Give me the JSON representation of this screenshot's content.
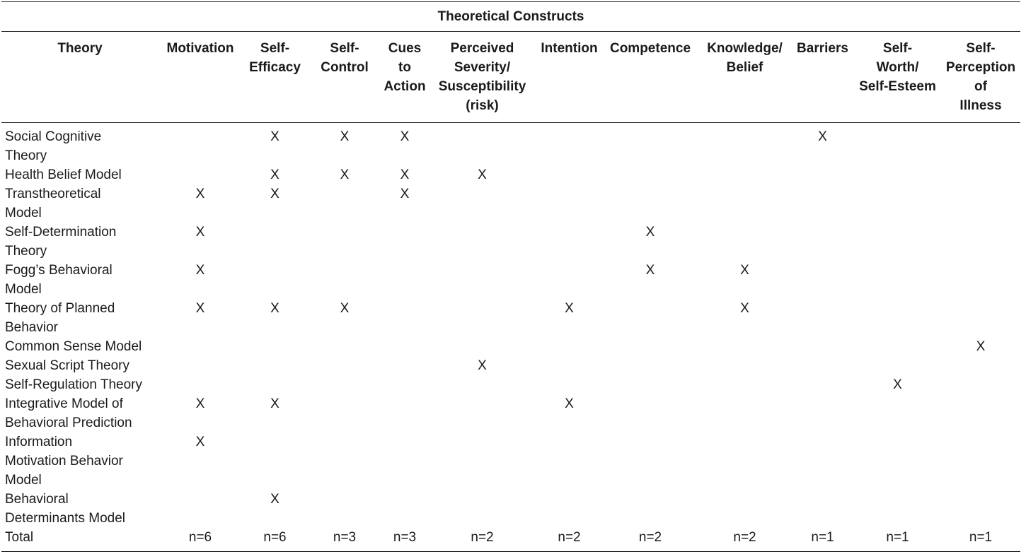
{
  "table": {
    "group_header": "Theoretical Constructs",
    "columns": [
      "Theory",
      "Motivation",
      "Self-\nEfficacy",
      "Self-\nControl",
      "Cues\nto\nAction",
      "Perceived\nSeverity/\nSusceptibility\n(risk)",
      "Intention",
      "Competence",
      "Knowledge/\nBelief",
      "Barriers",
      "Self-\nWorth/\nSelf-Esteem",
      "Self-\nPerception\nof\nIllness"
    ],
    "rows": [
      {
        "name": "Social Cognitive\nTheory",
        "marks": [
          "",
          "X",
          "X",
          "X",
          "",
          "",
          "",
          "",
          "X",
          "",
          ""
        ]
      },
      {
        "name": "Health Belief Model",
        "marks": [
          "",
          "X",
          "X",
          "X",
          "X",
          "",
          "",
          "",
          "",
          "",
          ""
        ]
      },
      {
        "name": "Transtheoretical\nModel",
        "marks": [
          "X",
          "X",
          "",
          "X",
          "",
          "",
          "",
          "",
          "",
          "",
          ""
        ]
      },
      {
        "name": "Self-Determination\nTheory",
        "marks": [
          "X",
          "",
          "",
          "",
          "",
          "",
          "X",
          "",
          "",
          "",
          ""
        ]
      },
      {
        "name": "Fogg’s Behavioral\nModel",
        "marks": [
          "X",
          "",
          "",
          "",
          "",
          "",
          "X",
          "X",
          "",
          "",
          ""
        ]
      },
      {
        "name": "Theory of Planned\nBehavior",
        "marks": [
          "X",
          "X",
          "X",
          "",
          "",
          "X",
          "",
          "X",
          "",
          "",
          ""
        ]
      },
      {
        "name": "Common Sense Model",
        "marks": [
          "",
          "",
          "",
          "",
          "",
          "",
          "",
          "",
          "",
          "",
          "X"
        ]
      },
      {
        "name": "Sexual Script Theory",
        "marks": [
          "",
          "",
          "",
          "",
          "X",
          "",
          "",
          "",
          "",
          "",
          ""
        ]
      },
      {
        "name": "Self-Regulation Theory",
        "marks": [
          "",
          "",
          "",
          "",
          "",
          "",
          "",
          "",
          "",
          "X",
          ""
        ]
      },
      {
        "name": "Integrative Model of\nBehavioral Prediction",
        "marks": [
          "X",
          "X",
          "",
          "",
          "",
          "X",
          "",
          "",
          "",
          "",
          ""
        ]
      },
      {
        "name": "Information\nMotivation Behavior\nModel",
        "marks": [
          "X",
          "",
          "",
          "",
          "",
          "",
          "",
          "",
          "",
          "",
          ""
        ]
      },
      {
        "name": "Behavioral\nDeterminants Model",
        "marks": [
          "",
          "X",
          "",
          "",
          "",
          "",
          "",
          "",
          "",
          "",
          ""
        ]
      }
    ],
    "total": {
      "name": "Total",
      "values": [
        "n=6",
        "n=6",
        "n=3",
        "n=3",
        "n=2",
        "n=2",
        "n=2",
        "n=2",
        "n=1",
        "n=1",
        "n=1"
      ]
    }
  }
}
